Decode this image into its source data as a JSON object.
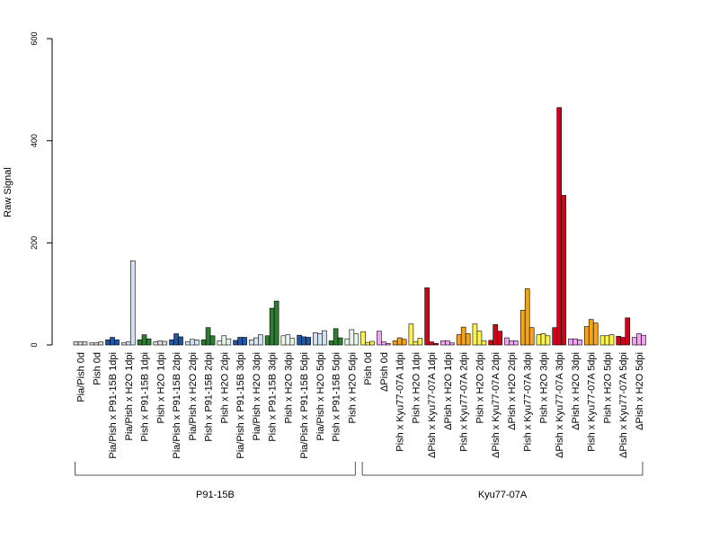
{
  "chart_data": {
    "type": "bar",
    "ylabel": "Raw Signal",
    "ylim": [
      0,
      600
    ],
    "yticks": [
      0,
      200,
      400,
      600
    ],
    "bars_per_category": 3,
    "categories": [
      {
        "label": "Pia/Pish 0d",
        "values": [
          6,
          6,
          6
        ],
        "color": "#dcdcdc"
      },
      {
        "label": "Pish 0d",
        "values": [
          4,
          4,
          6
        ],
        "color": "#dcdcdc"
      },
      {
        "label": "Pia/Pish x P91-15B 1dpi",
        "values": [
          10,
          15,
          10
        ],
        "color": "#1f57a4"
      },
      {
        "label": "Pia/Pish x H2O 1dpi",
        "values": [
          4,
          6,
          165
        ],
        "color": "#d2e1ef"
      },
      {
        "label": "Pish x P91-15B 1dpi",
        "values": [
          10,
          20,
          12
        ],
        "color": "#2e7d32"
      },
      {
        "label": "Pish x H2O 1dpi",
        "values": [
          6,
          8,
          7
        ],
        "color": "#dcdcdc"
      },
      {
        "label": "Pia/Pish x P91-15B 2dpi",
        "values": [
          10,
          22,
          16
        ],
        "color": "#1f57a4"
      },
      {
        "label": "Pia/Pish x H2O 2dpi",
        "values": [
          6,
          11,
          10
        ],
        "color": "#d2e1ef"
      },
      {
        "label": "Pish x P91-15B 2dpi",
        "values": [
          10,
          34,
          18
        ],
        "color": "#2e7d32"
      },
      {
        "label": "Pish x H2O 2dpi",
        "values": [
          8,
          18,
          12
        ],
        "color": "#e8f5e9"
      },
      {
        "label": "Pia/Pish x P91-15B 3dpi",
        "values": [
          9,
          15,
          15
        ],
        "color": "#1f57a4"
      },
      {
        "label": "Pia/Pish x H2O 3dpi",
        "values": [
          10,
          14,
          20
        ],
        "color": "#d2e1ef"
      },
      {
        "label": "Pish x P91-15B 3dpi",
        "values": [
          18,
          72,
          86
        ],
        "color": "#2e7d32"
      },
      {
        "label": "Pish x H2O 3dpi",
        "values": [
          18,
          20,
          13
        ],
        "color": "#e8f5e9"
      },
      {
        "label": "Pia/Pish x P91-15B 5dpi",
        "values": [
          19,
          16,
          15
        ],
        "color": "#1f57a4"
      },
      {
        "label": "Pia/Pish x H2O 5dpi",
        "values": [
          24,
          22,
          28
        ],
        "color": "#d2e1ef"
      },
      {
        "label": "Pish x P91-15B 5dpi",
        "values": [
          8,
          32,
          14
        ],
        "color": "#2e7d32"
      },
      {
        "label": "Pish x H2O 5dpi",
        "values": [
          12,
          30,
          22
        ],
        "color": "#e8f5e9"
      },
      {
        "label": "Pish 0d",
        "values": [
          26,
          5,
          7
        ],
        "color": "#fff44f"
      },
      {
        "label": "ΔPish 0d",
        "values": [
          27,
          6,
          3
        ],
        "color": "#f5a3f5"
      },
      {
        "label": "Pish x Kyu77-07A 1dpi",
        "values": [
          8,
          14,
          11
        ],
        "color": "#f6a21a"
      },
      {
        "label": "Pish x H2O 1dpi",
        "values": [
          41,
          6,
          13
        ],
        "color": "#fff44f"
      },
      {
        "label": "ΔPish x Kyu77-07A 1dpi",
        "values": [
          112,
          6,
          3
        ],
        "color": "#d0021b"
      },
      {
        "label": "ΔPish x H2O 1dpi",
        "values": [
          8,
          8,
          4
        ],
        "color": "#f5a3f5"
      },
      {
        "label": "Pish x Kyu77-07A 2dpi",
        "values": [
          20,
          35,
          22
        ],
        "color": "#f6a21a"
      },
      {
        "label": "Pish x H2O 2dpi",
        "values": [
          41,
          27,
          8
        ],
        "color": "#fff44f"
      },
      {
        "label": "ΔPish x Kyu77-07A 2dpi",
        "values": [
          9,
          40,
          27
        ],
        "color": "#d0021b"
      },
      {
        "label": "ΔPish x H2O 2dpi",
        "values": [
          14,
          8,
          8
        ],
        "color": "#f5a3f5"
      },
      {
        "label": "Pish x Kyu77-07A 3dpi",
        "values": [
          68,
          110,
          34
        ],
        "color": "#f6a21a"
      },
      {
        "label": "Pish x H2O 3dpi",
        "values": [
          20,
          22,
          18
        ],
        "color": "#fff44f"
      },
      {
        "label": "ΔPish x Kyu77-07A 3dpi",
        "values": [
          34,
          465,
          293
        ],
        "color": "#d0021b"
      },
      {
        "label": "ΔPish x H2O 3dpi",
        "values": [
          12,
          12,
          10
        ],
        "color": "#f5a3f5"
      },
      {
        "label": "Pish x Kyu77-07A 5dpi",
        "values": [
          36,
          50,
          43
        ],
        "color": "#f6a21a"
      },
      {
        "label": "Pish x H2O 5dpi",
        "values": [
          18,
          18,
          20
        ],
        "color": "#fff44f"
      },
      {
        "label": "ΔPish x Kyu77-07A 5dpi",
        "values": [
          17,
          15,
          53
        ],
        "color": "#d0021b"
      },
      {
        "label": "ΔPish x H2O 5dpi",
        "values": [
          15,
          22,
          19
        ],
        "color": "#f5a3f5"
      }
    ],
    "groups": [
      {
        "label": "P91-15B",
        "start_index": 0,
        "end_index": 17
      },
      {
        "label": "Kyu77-07A",
        "start_index": 18,
        "end_index": 35
      }
    ],
    "grid": false,
    "legend": "none"
  }
}
